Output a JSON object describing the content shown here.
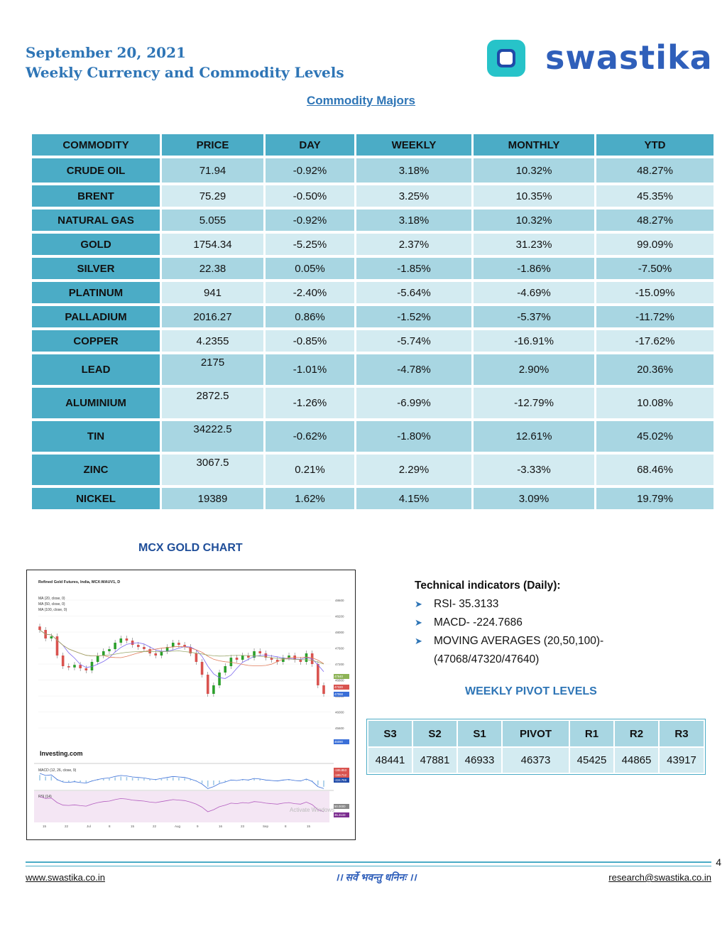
{
  "header": {
    "date": "September 20, 2021",
    "title": "Weekly Currency and Commodity Levels",
    "brand": "swastika"
  },
  "commodity": {
    "heading": "Commodity Majors",
    "columns": [
      "COMMODITY",
      "PRICE",
      "DAY",
      "WEEKLY",
      "MONTHLY",
      "YTD"
    ],
    "rows": [
      [
        "CRUDE OIL",
        "71.94",
        "-0.92%",
        "3.18%",
        "10.32%",
        "48.27%"
      ],
      [
        "BRENT",
        "75.29",
        "-0.50%",
        "3.25%",
        "10.35%",
        "45.35%"
      ],
      [
        "NATURAL GAS",
        "5.055",
        "-0.92%",
        "3.18%",
        "10.32%",
        "48.27%"
      ],
      [
        "GOLD",
        "1754.34",
        "-5.25%",
        "2.37%",
        "31.23%",
        "99.09%"
      ],
      [
        "SILVER",
        "22.38",
        "0.05%",
        "-1.85%",
        "-1.86%",
        "-7.50%"
      ],
      [
        "PLATINUM",
        "941",
        "-2.40%",
        "-5.64%",
        "-4.69%",
        "-15.09%"
      ],
      [
        "PALLADIUM",
        "2016.27",
        "0.86%",
        "-1.52%",
        "-5.37%",
        "-11.72%"
      ],
      [
        "COPPER",
        "4.2355",
        "-0.85%",
        "-5.74%",
        "-16.91%",
        "-17.62%"
      ],
      [
        "LEAD",
        "2175",
        "-1.01%",
        "-4.78%",
        "2.90%",
        "20.36%"
      ],
      [
        "ALUMINIUM",
        "2872.5",
        "-1.26%",
        "-6.99%",
        "-12.79%",
        "10.08%"
      ],
      [
        "TIN",
        "34222.5",
        "-0.62%",
        "-1.80%",
        "12.61%",
        "45.02%"
      ],
      [
        "ZINC",
        "3067.5",
        "0.21%",
        "2.29%",
        "-3.33%",
        "68.46%"
      ],
      [
        "NICKEL",
        "19389",
        "1.62%",
        "4.15%",
        "3.09%",
        "19.79%"
      ]
    ]
  },
  "gold_chart": {
    "heading": "MCX GOLD CHART",
    "chart_title": "Refined Gold Futures, India, MCX:MAUV1, D",
    "ma_legend": [
      "MA (20, close, 0)",
      "MA (50, close, 0)",
      "MA (100, close, 0)"
    ],
    "source": "Investing.com",
    "macd_label": "MACD (12, 26, close, 9)",
    "rsi_label": "RSI (14)",
    "watermark": "Activate Windows",
    "price_ticks": [
      "48600",
      "48200",
      "48000",
      "47600",
      "47200",
      "46800",
      "46400",
      "46000",
      "45600"
    ],
    "x_ticks": [
      "15",
      "22",
      "Jul",
      "8",
      "15",
      "22",
      "Aug",
      "9",
      "16",
      "23",
      "Sep",
      "8",
      "15"
    ],
    "right_labels": [
      "47640",
      "47320",
      "47068",
      "46090",
      "-185.853",
      "-189.712",
      "-224.769",
      "50.0000",
      "35.3133"
    ],
    "colors": {
      "up": "#2ca02c",
      "down": "#d9534f",
      "ma20": "#7b68ee",
      "ma50": "#e07b5a",
      "ma100": "#9aa86c",
      "rsi": "#b35dbf"
    }
  },
  "technical": {
    "heading": "Technical indicators (Daily):",
    "items": [
      "RSI- 35.3133",
      "MACD- -224.7686",
      "MOVING AVERAGES (20,50,100)-"
    ],
    "ma_values": "(47068/47320/47640)"
  },
  "pivot": {
    "heading": "WEEKLY PIVOT LEVELS",
    "columns": [
      "S3",
      "S2",
      "S1",
      "PIVOT",
      "R1",
      "R2",
      "R3"
    ],
    "values": [
      "48441",
      "47881",
      "46933",
      "46373",
      "45425",
      "44865",
      "43917"
    ]
  },
  "footer": {
    "page": "4",
    "website": "www.swastika.co.in",
    "motto": "।। सर्वे भवन्तु धनिनः ।।",
    "email": "research@swastika.co.in"
  }
}
